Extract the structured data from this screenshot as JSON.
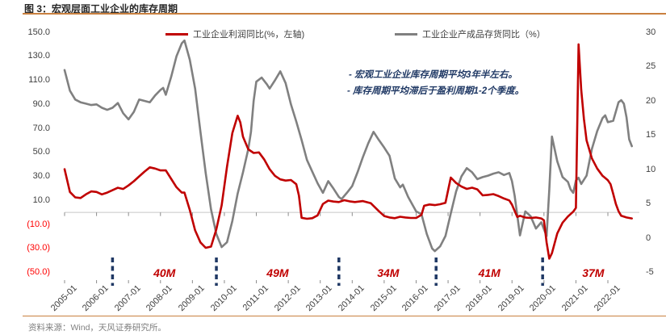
{
  "title": "图 3：宏观层面工业企业的库存周期",
  "source": "资料来源：Wind，天风证券研究所。",
  "notes": [
    "- 宏观工业企业库存周期平均3年半左右。",
    "- 库存周期平均滞后于盈利周期1-2个季度。"
  ],
  "colors": {
    "profit_line": "#C00000",
    "inventory_line": "#808080",
    "cycle_dash": "#1F3864",
    "note_text": "#1F3864",
    "cycle_label": "#C00000",
    "negative_tick": "#FF0000",
    "rule_orange": "#C9803F",
    "zero_line": "#C6C6C6",
    "tick_mark": "#8C8C8C"
  },
  "chart_data": {
    "type": "line",
    "title": "宏观层面工业企业的库存周期",
    "x_unit": "months since 2005-01, monthly series 2005-01 to 2022-10",
    "x_labels": [
      "2005-01",
      "2006-01",
      "2007-01",
      "2008-01",
      "2009-01",
      "2010-01",
      "2011-01",
      "2012-01",
      "2013-01",
      "2014-01",
      "2015-01",
      "2016-01",
      "2017-01",
      "2018-01",
      "2019-01",
      "2020-01",
      "2021-01",
      "2022-01"
    ],
    "left_axis": {
      "range": [
        -50,
        150
      ],
      "ticks": [
        "150.0",
        "130.0",
        "110.0",
        "90.0",
        "70.0",
        "50.0",
        "30.0",
        "10.0",
        "(10.0)",
        "(30.0)",
        "(50.0)"
      ]
    },
    "right_axis": {
      "range": [
        -5,
        30
      ],
      "ticks": [
        "30",
        "25",
        "20",
        "15",
        "10",
        "5",
        "0",
        "-5"
      ]
    },
    "grid": "single horizontal line at left-axis zero with year tick marks",
    "legend_position": "top",
    "cycle_annotations": [
      {
        "label": "40M",
        "month": 37.5
      },
      {
        "label": "49M",
        "month": 80
      },
      {
        "label": "34M",
        "month": 121.5
      },
      {
        "label": "41M",
        "month": 159.5
      },
      {
        "label": "37M",
        "month": 198.5
      }
    ],
    "cycle_dash_months": [
      18,
      57,
      103,
      139.5,
      179.5
    ],
    "series": [
      {
        "name": "工业企业利润同比(%，左轴)",
        "axis": "left",
        "color": "#C00000",
        "points": [
          [
            0,
            36
          ],
          [
            2,
            17
          ],
          [
            4,
            12.5
          ],
          [
            6,
            12
          ],
          [
            8,
            15
          ],
          [
            10,
            17.5
          ],
          [
            12,
            17
          ],
          [
            14,
            15
          ],
          [
            16,
            16.5
          ],
          [
            18,
            18.5
          ],
          [
            20,
            20.5
          ],
          [
            22,
            19.5
          ],
          [
            24,
            22.5
          ],
          [
            26,
            26
          ],
          [
            28,
            30
          ],
          [
            30,
            34
          ],
          [
            32,
            37.5
          ],
          [
            34,
            36.5
          ],
          [
            36,
            35
          ],
          [
            38,
            35
          ],
          [
            40,
            28
          ],
          [
            42,
            21
          ],
          [
            44,
            16.5
          ],
          [
            45,
            16.5
          ],
          [
            47,
            2
          ],
          [
            49,
            -15
          ],
          [
            51,
            -25
          ],
          [
            53,
            -29.5
          ],
          [
            55,
            -28.5
          ],
          [
            57,
            -14
          ],
          [
            59,
            6
          ],
          [
            61,
            38
          ],
          [
            63,
            66
          ],
          [
            65,
            80.5
          ],
          [
            66,
            75
          ],
          [
            67,
            63
          ],
          [
            69,
            52.5
          ],
          [
            71,
            49.5
          ],
          [
            73,
            50
          ],
          [
            75,
            44
          ],
          [
            77,
            36
          ],
          [
            79,
            30.5
          ],
          [
            81,
            27.5
          ],
          [
            83,
            26.5
          ],
          [
            85,
            27
          ],
          [
            87,
            23.5
          ],
          [
            88,
            14
          ],
          [
            89,
            -4.5
          ],
          [
            91,
            -5.3
          ],
          [
            93,
            -4.8
          ],
          [
            95,
            -2.5
          ],
          [
            97,
            7
          ],
          [
            99,
            9.8
          ],
          [
            101,
            9
          ],
          [
            103,
            8.6
          ],
          [
            105,
            10.2
          ],
          [
            107,
            9.2
          ],
          [
            109,
            8.6
          ],
          [
            112,
            9.4
          ],
          [
            115,
            7.6
          ],
          [
            118,
            1
          ],
          [
            120,
            -3
          ],
          [
            122,
            -4.2
          ],
          [
            124,
            -4.8
          ],
          [
            126,
            -3.6
          ],
          [
            128,
            -4.2
          ],
          [
            130,
            -4.6
          ],
          [
            132,
            -4.6
          ],
          [
            134,
            -2
          ],
          [
            135,
            5.5
          ],
          [
            137,
            6.6
          ],
          [
            139,
            6.1
          ],
          [
            141,
            6.8
          ],
          [
            143,
            8
          ],
          [
            145,
            29
          ],
          [
            147,
            24.5
          ],
          [
            149,
            21.5
          ],
          [
            151,
            19.6
          ],
          [
            153,
            20.6
          ],
          [
            155,
            19.2
          ],
          [
            157,
            14.2
          ],
          [
            159,
            14.6
          ],
          [
            161,
            15.2
          ],
          [
            163,
            13.6
          ],
          [
            165,
            11.6
          ],
          [
            167,
            10
          ],
          [
            168,
            6.5
          ],
          [
            170,
            -3.8
          ],
          [
            171,
            -2.8
          ],
          [
            173,
            -4.3
          ],
          [
            175,
            -4.6
          ],
          [
            177,
            -4.2
          ],
          [
            179,
            -5
          ],
          [
            180,
            -6.6
          ],
          [
            181,
            -25
          ],
          [
            182,
            -38.5
          ],
          [
            183,
            -34
          ],
          [
            185,
            -17.5
          ],
          [
            187,
            -8.5
          ],
          [
            189,
            -3.4
          ],
          [
            191,
            0.6
          ],
          [
            192,
            3.8
          ],
          [
            193,
            140
          ],
          [
            194,
            102
          ],
          [
            195,
            78
          ],
          [
            196,
            60
          ],
          [
            198,
            45
          ],
          [
            200,
            36.5
          ],
          [
            202,
            30.5
          ],
          [
            204,
            26.8
          ],
          [
            205,
            23.5
          ],
          [
            206,
            15.5
          ],
          [
            207,
            7
          ],
          [
            208,
            1
          ],
          [
            209,
            -2.8
          ],
          [
            211,
            -4.2
          ],
          [
            213,
            -5
          ]
        ]
      },
      {
        "name": "工业企业产成品存货同比（%）",
        "axis": "right",
        "color": "#808080",
        "points": [
          [
            0,
            24.5
          ],
          [
            2,
            21.5
          ],
          [
            4,
            20.2
          ],
          [
            6,
            19.8
          ],
          [
            8,
            19.6
          ],
          [
            10,
            19.4
          ],
          [
            12,
            19.5
          ],
          [
            14,
            19
          ],
          [
            16,
            18.7
          ],
          [
            18,
            19
          ],
          [
            20,
            19.7
          ],
          [
            22,
            18.2
          ],
          [
            24,
            17.3
          ],
          [
            26,
            18.4
          ],
          [
            28,
            20.2
          ],
          [
            30,
            20
          ],
          [
            32,
            19.8
          ],
          [
            34,
            20.8
          ],
          [
            36,
            21.6
          ],
          [
            37,
            21.9
          ],
          [
            38,
            20.9
          ],
          [
            40,
            23.5
          ],
          [
            42,
            26.5
          ],
          [
            44,
            28.4
          ],
          [
            45,
            28.8
          ],
          [
            47,
            26
          ],
          [
            49,
            21.8
          ],
          [
            51,
            15.5
          ],
          [
            53,
            9.5
          ],
          [
            55,
            4.2
          ],
          [
            57,
            0.6
          ],
          [
            59,
            -1.3
          ],
          [
            61,
            -0.6
          ],
          [
            63,
            2.5
          ],
          [
            65,
            6.5
          ],
          [
            67,
            9.6
          ],
          [
            69,
            13
          ],
          [
            70,
            15.5
          ],
          [
            71,
            20
          ],
          [
            72,
            22.8
          ],
          [
            74,
            23.4
          ],
          [
            76,
            22.4
          ],
          [
            77,
            21.8
          ],
          [
            79,
            23
          ],
          [
            81,
            24.3
          ],
          [
            83,
            22.6
          ],
          [
            85,
            19.5
          ],
          [
            87,
            17
          ],
          [
            89,
            14.3
          ],
          [
            91,
            11.4
          ],
          [
            93,
            9.7
          ],
          [
            95,
            8
          ],
          [
            97,
            6.6
          ],
          [
            99,
            8.3
          ],
          [
            101,
            7.2
          ],
          [
            103,
            6
          ],
          [
            104,
            5.7
          ],
          [
            106,
            6.6
          ],
          [
            108,
            7.6
          ],
          [
            110,
            9.6
          ],
          [
            112,
            11.8
          ],
          [
            114,
            13.8
          ],
          [
            116,
            15.5
          ],
          [
            118,
            14.3
          ],
          [
            120,
            13.2
          ],
          [
            122,
            12
          ],
          [
            124,
            8.7
          ],
          [
            126,
            7.4
          ],
          [
            127,
            7.8
          ],
          [
            129,
            6
          ],
          [
            131,
            4.6
          ],
          [
            132,
            3.9
          ],
          [
            134,
            3.5
          ],
          [
            136,
            0.6
          ],
          [
            138,
            -1.5
          ],
          [
            139,
            -1.9
          ],
          [
            141,
            -1.2
          ],
          [
            143,
            0.3
          ],
          [
            145,
            3.6
          ],
          [
            147,
            6.8
          ],
          [
            149,
            9
          ],
          [
            151,
            10.2
          ],
          [
            153,
            9.6
          ],
          [
            155,
            8.6
          ],
          [
            157,
            8.9
          ],
          [
            159,
            9.1
          ],
          [
            161,
            9.4
          ],
          [
            163,
            9.6
          ],
          [
            165,
            9.2
          ],
          [
            167,
            9.5
          ],
          [
            168,
            8.3
          ],
          [
            169,
            6.2
          ],
          [
            171,
            0.4
          ],
          [
            173,
            3.9
          ],
          [
            175,
            3.2
          ],
          [
            177,
            1.4
          ],
          [
            179,
            2.3
          ],
          [
            181,
            0.3
          ],
          [
            182,
            7
          ],
          [
            183,
            14.8
          ],
          [
            185,
            11.2
          ],
          [
            187,
            8.9
          ],
          [
            189,
            8.2
          ],
          [
            190,
            7.1
          ],
          [
            191,
            6.6
          ],
          [
            192,
            8.4
          ],
          [
            193,
            8.8
          ],
          [
            194,
            7.9
          ],
          [
            196,
            9.1
          ],
          [
            198,
            13
          ],
          [
            200,
            15.6
          ],
          [
            202,
            17.5
          ],
          [
            203,
            17.9
          ],
          [
            204,
            16.9
          ],
          [
            206,
            17.1
          ],
          [
            208,
            19.8
          ],
          [
            209,
            20.1
          ],
          [
            210,
            19.6
          ],
          [
            211,
            17.6
          ],
          [
            212,
            14.4
          ],
          [
            213,
            13.4
          ]
        ]
      }
    ]
  }
}
